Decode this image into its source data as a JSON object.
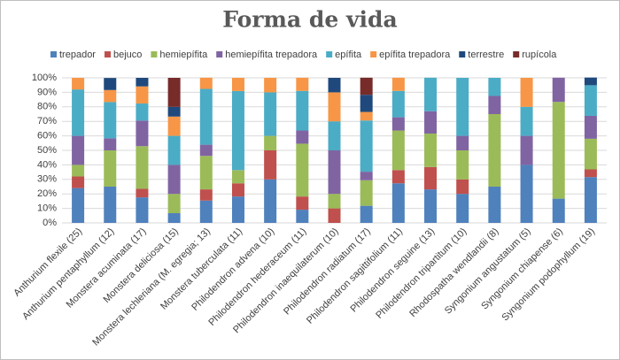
{
  "chart_data": {
    "type": "stacked_bar",
    "title": "Forma de vida",
    "categories": [
      "Anthurium flexile (25)",
      "Anthurium pentaphyllum (12)",
      "Monstera acuminata (17)",
      "Monstera deliciosa (15)",
      "Monstera lechleriana (M. egregia; 13)",
      "Monstera tuberculata (11)",
      "Philodendron advena (10)",
      "Philodendron hederaceum (11)",
      "Philodendron inaequilaterum (10)",
      "Philodendron radiatum (17)",
      "Philodendron sagittifolium (11)",
      "Philodendron seguine (13)",
      "Philodendron tripartitum (10)",
      "Rhodospatha wendlandii (8)",
      "Syngonium angustatum (5)",
      "Syngonium chiapense (6)",
      "Syngonium podophyllum (19)"
    ],
    "series": [
      {
        "name": "trepador",
        "color": "#4f81bd",
        "values": [
          24,
          25,
          17.6,
          6.7,
          15.4,
          18.2,
          30,
          9.1,
          0,
          11.8,
          27.3,
          23.1,
          20,
          25,
          40,
          16.7,
          31.6
        ]
      },
      {
        "name": "bejuco",
        "color": "#c0504d",
        "values": [
          8,
          0,
          5.9,
          0,
          7.7,
          9.1,
          20,
          9.1,
          10,
          0,
          9.1,
          15.4,
          10,
          0,
          0,
          0,
          5.3
        ]
      },
      {
        "name": "hemiepífita",
        "color": "#9bbb59",
        "values": [
          8,
          25,
          29.4,
          13.3,
          23.1,
          9.1,
          10,
          36.4,
          10,
          17.6,
          27.3,
          23.1,
          20,
          50,
          0,
          66.7,
          21.1
        ]
      },
      {
        "name": "hemiepífita trepadora",
        "color": "#8064a2",
        "values": [
          20,
          8.3,
          17.6,
          20,
          7.7,
          0,
          0,
          9.1,
          30,
          5.9,
          9.1,
          15.4,
          10,
          12.5,
          20,
          16.7,
          15.8
        ]
      },
      {
        "name": "epífita",
        "color": "#4bacc6",
        "values": [
          32,
          25,
          11.8,
          20,
          38.5,
          54.5,
          30,
          27.3,
          20,
          35.3,
          18.2,
          23.1,
          40,
          12.5,
          20,
          0,
          21.1
        ]
      },
      {
        "name": "epífita trepadora",
        "color": "#f79646",
        "values": [
          8,
          8.3,
          11.8,
          13.3,
          7.7,
          9.1,
          10,
          9.1,
          20,
          5.9,
          9.1,
          0,
          0,
          0,
          20,
          0,
          0
        ]
      },
      {
        "name": "terrestre",
        "color": "#1f497d",
        "values": [
          0,
          8.3,
          5.9,
          6.7,
          0,
          0,
          0,
          0,
          10,
          11.8,
          0,
          0,
          0,
          0,
          0,
          0,
          5.3
        ]
      },
      {
        "name": "rupícola",
        "color": "#772c2a",
        "values": [
          0,
          0,
          0,
          20,
          0,
          0,
          0,
          0,
          0,
          11.8,
          0,
          0,
          0,
          0,
          0,
          0,
          0
        ]
      }
    ],
    "ylim": [
      0,
      100
    ],
    "yticks": [
      {
        "value": 0,
        "label": "0%"
      },
      {
        "value": 10,
        "label": "10%"
      },
      {
        "value": 20,
        "label": "20%"
      },
      {
        "value": 30,
        "label": "30%"
      },
      {
        "value": 40,
        "label": "40%"
      },
      {
        "value": 50,
        "label": "50%"
      },
      {
        "value": 60,
        "label": "60%"
      },
      {
        "value": 70,
        "label": "70%"
      },
      {
        "value": 80,
        "label": "80%"
      },
      {
        "value": 90,
        "label": "90%"
      },
      {
        "value": 100,
        "label": "100%"
      }
    ],
    "grid": true,
    "legend": "top"
  }
}
